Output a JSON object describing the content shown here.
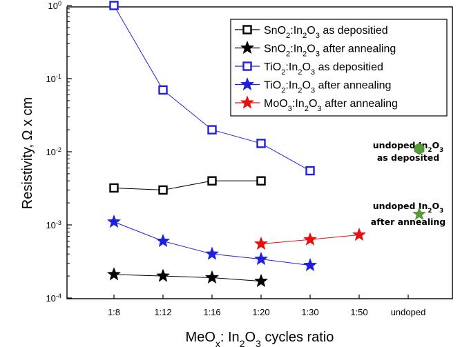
{
  "chart_data": {
    "type": "scatter",
    "y_scale": "log",
    "ylim": [
      0.0001,
      2
    ],
    "grid": false,
    "legend_position": "top-right",
    "categories": [
      "1:8",
      "1:12",
      "1:16",
      "1:20",
      "1:30",
      "1:50",
      "undoped"
    ],
    "x_tick_labels": [
      "1:8",
      "1:12",
      "1:16",
      "1:20",
      "1:30",
      "1:50",
      "undoped"
    ],
    "y_tick_labels": [
      {
        "value": 0.0001,
        "base": "10",
        "exp": "-4"
      },
      {
        "value": 0.001,
        "base": "10",
        "exp": "-3"
      },
      {
        "value": 0.01,
        "base": "10",
        "exp": "-2"
      },
      {
        "value": 0.1,
        "base": "10",
        "exp": "-1"
      },
      {
        "value": 1,
        "base": "10",
        "exp": "0"
      }
    ],
    "xlabel": {
      "pre": "MeO",
      "sub1": "x",
      "mid": ": In",
      "sub2": "2",
      "mid2": "O",
      "sub3": "3",
      "post": " cycles ratio"
    },
    "ylabel": "Resistivity, Ω x cm",
    "series": [
      {
        "name": "SnO2:In2O3 as deposited",
        "legend_parts": [
          [
            "SnO",
            ""
          ],
          [
            "2",
            "sub"
          ],
          [
            ":In",
            ""
          ],
          [
            "2",
            "sub"
          ],
          [
            "O",
            ""
          ],
          [
            "3",
            "sub"
          ],
          [
            " as depositied",
            ""
          ]
        ],
        "marker": "square-open",
        "color": "#000000",
        "points": [
          [
            "1:8",
            0.0032
          ],
          [
            "1:12",
            0.003
          ],
          [
            "1:16",
            0.004
          ],
          [
            "1:20",
            0.004
          ]
        ]
      },
      {
        "name": "SnO2:In2O3 after annealing",
        "legend_parts": [
          [
            "SnO",
            ""
          ],
          [
            "2",
            "sub"
          ],
          [
            ":In",
            ""
          ],
          [
            "2",
            "sub"
          ],
          [
            "O",
            ""
          ],
          [
            "3",
            "sub"
          ],
          [
            " after annealing",
            ""
          ]
        ],
        "marker": "star",
        "color": "#000000",
        "points": [
          [
            "1:8",
            0.00021
          ],
          [
            "1:12",
            0.0002
          ],
          [
            "1:16",
            0.00019
          ],
          [
            "1:20",
            0.00017
          ]
        ]
      },
      {
        "name": "TiO2:In2O3 as deposited",
        "legend_parts": [
          [
            "TiO",
            ""
          ],
          [
            "2",
            "sub"
          ],
          [
            ":In",
            ""
          ],
          [
            "2",
            "sub"
          ],
          [
            "O",
            ""
          ],
          [
            "3",
            "sub"
          ],
          [
            " as depositied",
            ""
          ]
        ],
        "marker": "square-open",
        "color": "#1f1fe0",
        "points": [
          [
            "1:8",
            1.0
          ],
          [
            "1:12",
            0.07
          ],
          [
            "1:16",
            0.02
          ],
          [
            "1:20",
            0.013
          ],
          [
            "1:30",
            0.0055
          ]
        ]
      },
      {
        "name": "TiO2:In2O3 after annealing",
        "legend_parts": [
          [
            "TiO",
            ""
          ],
          [
            "2",
            "sub"
          ],
          [
            ":In",
            ""
          ],
          [
            "2",
            "sub"
          ],
          [
            "O",
            ""
          ],
          [
            "3",
            "sub"
          ],
          [
            " after annealing",
            ""
          ]
        ],
        "marker": "star",
        "color": "#1f1fe0",
        "points": [
          [
            "1:8",
            0.0011
          ],
          [
            "1:12",
            0.0006
          ],
          [
            "1:16",
            0.0004
          ],
          [
            "1:20",
            0.00034
          ],
          [
            "1:30",
            0.00028
          ]
        ]
      },
      {
        "name": "MoO3:In2O3 after annealing",
        "legend_parts": [
          [
            "MoO",
            ""
          ],
          [
            "3",
            "sub"
          ],
          [
            ":In",
            ""
          ],
          [
            "2",
            "sub"
          ],
          [
            "O",
            ""
          ],
          [
            "3",
            "sub"
          ],
          [
            " after annealing",
            ""
          ]
        ],
        "marker": "star",
        "color": "#e81010",
        "points": [
          [
            "1:20",
            0.00055
          ],
          [
            "1:30",
            0.00063
          ],
          [
            "1:50",
            0.00073
          ]
        ]
      }
    ],
    "annotations": [
      {
        "lines": [
          [
            [
              "undoped In",
              ""
            ],
            [
              "2",
              "sub"
            ],
            [
              "O",
              ""
            ],
            [
              "3",
              "sub"
            ]
          ],
          [
            [
              "as deposited",
              ""
            ]
          ]
        ],
        "marker": "hexagon",
        "color": "#5a9a3a",
        "x": "undoped",
        "y": 0.011
      },
      {
        "lines": [
          [
            [
              "undoped In",
              ""
            ],
            [
              "2",
              "sub"
            ],
            [
              "O",
              ""
            ],
            [
              "3",
              "sub"
            ]
          ],
          [
            [
              "after annealing",
              ""
            ]
          ]
        ],
        "marker": "star",
        "color": "#5a9a3a",
        "x": "undoped",
        "y": 0.0014
      }
    ]
  }
}
